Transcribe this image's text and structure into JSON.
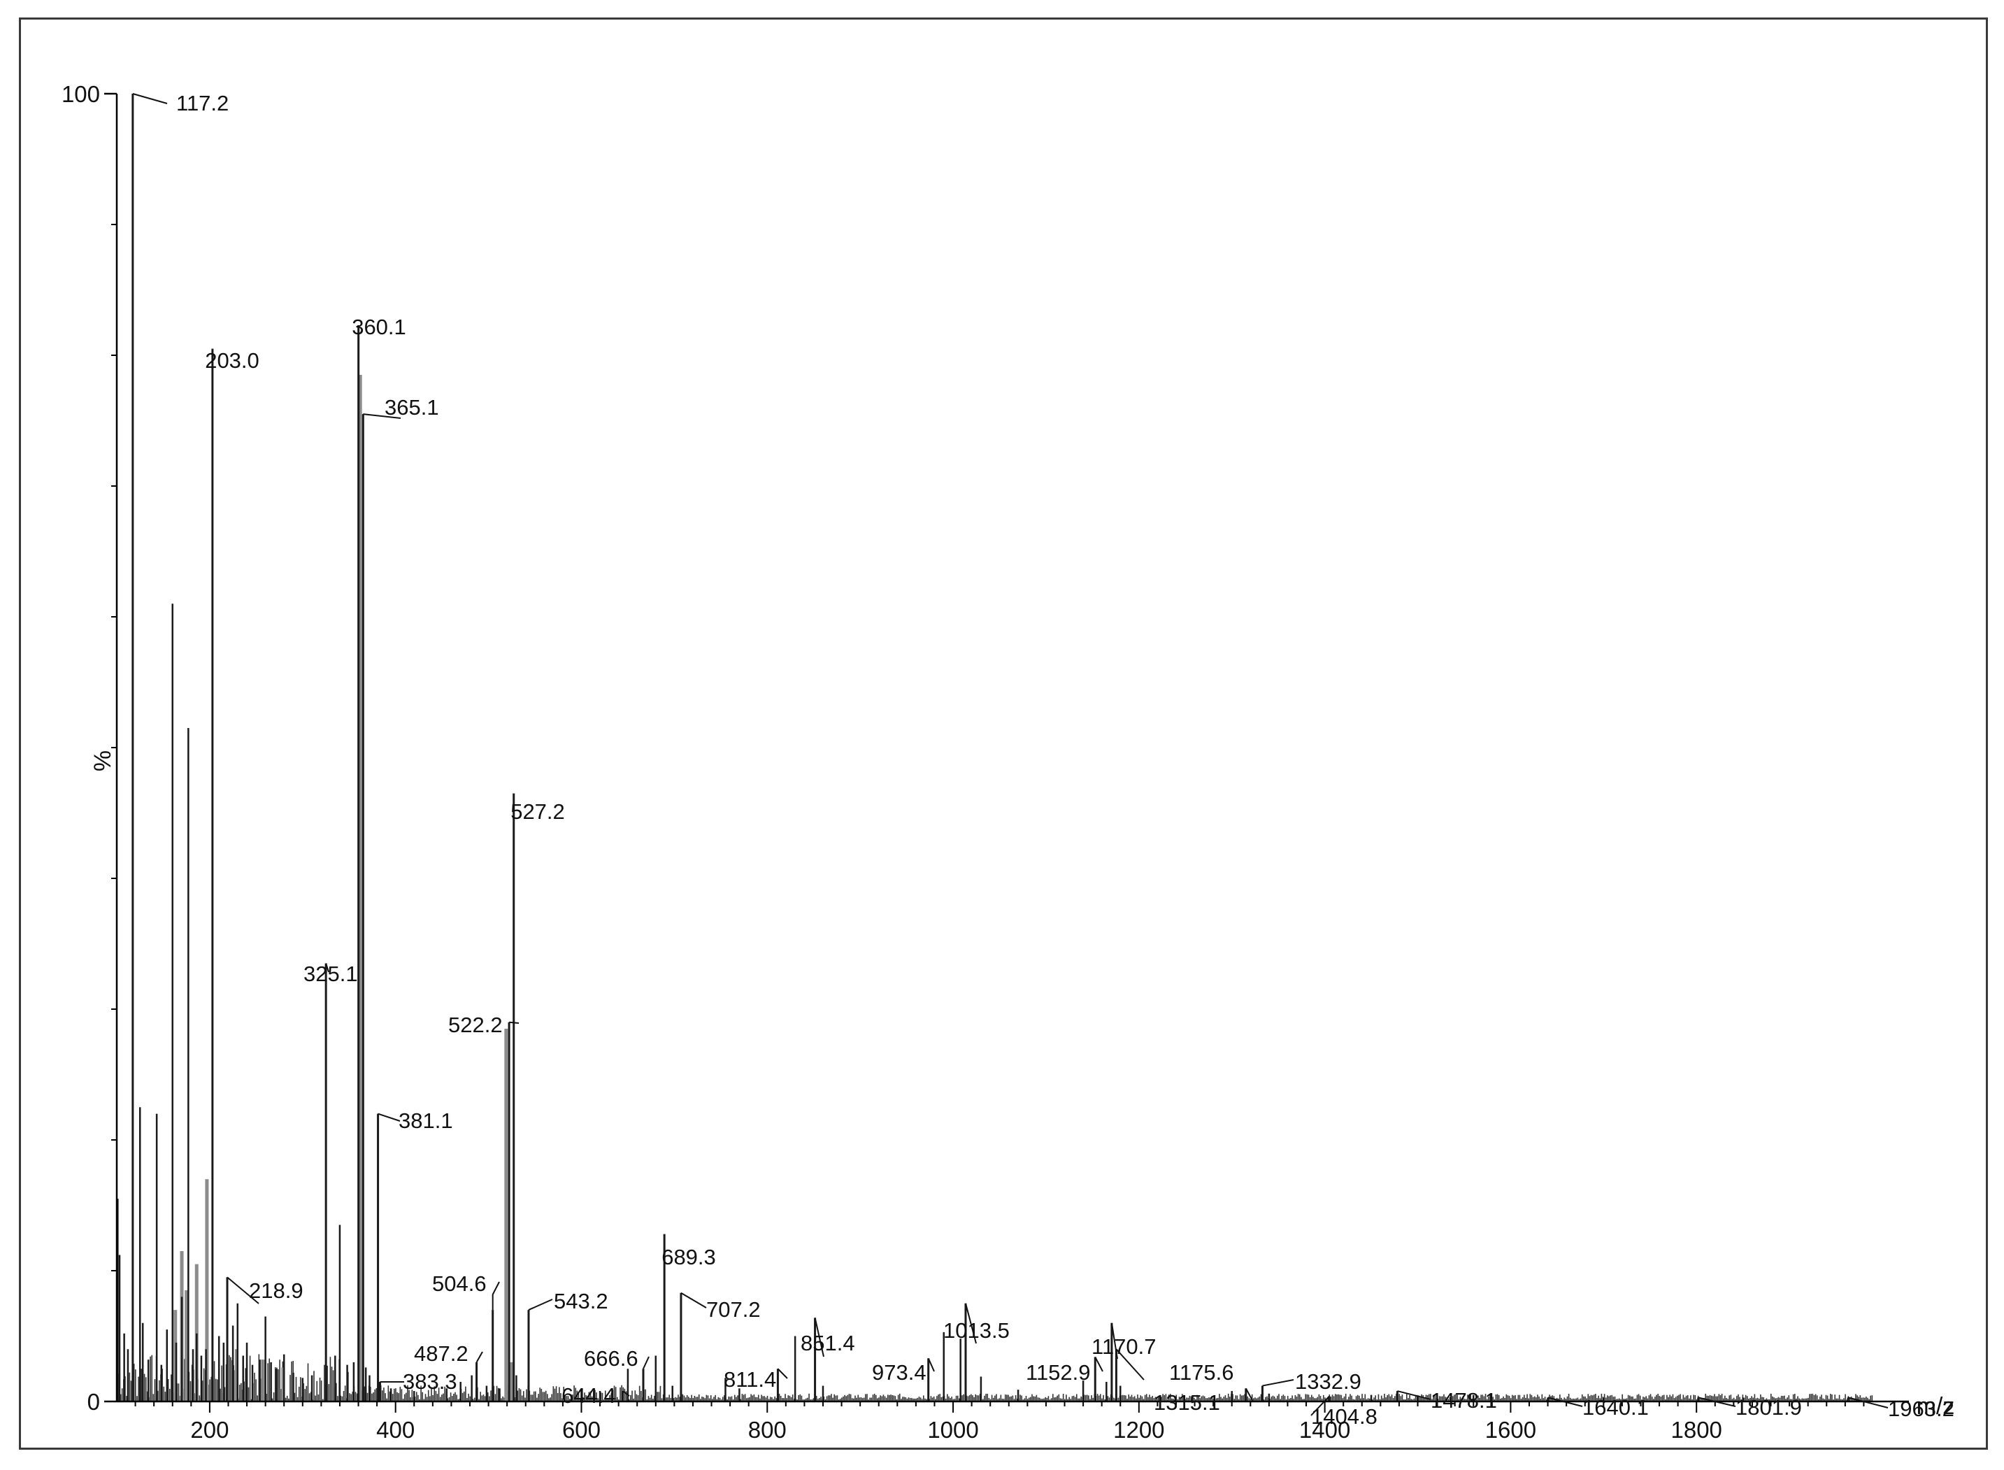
{
  "chart_data": {
    "type": "bar",
    "subtype": "mass-spectrum",
    "title": "",
    "xlabel": "m/z",
    "ylabel": "%",
    "xlim": [
      100,
      2000
    ],
    "ylim": [
      0,
      100
    ],
    "x_ticks": [
      200,
      400,
      600,
      800,
      1000,
      1200,
      1400,
      1600,
      1800
    ],
    "y_ticks": [
      0,
      100
    ],
    "grid": false,
    "colors": {
      "peak": "#1a1a1a",
      "peak_gray": "#8c8c8c",
      "axis": "#000000"
    },
    "labeled_peaks": [
      {
        "label": "117.2",
        "mz": 117.2,
        "intensity": 100
      },
      {
        "label": "203.0",
        "mz": 203.0,
        "intensity": 80.5
      },
      {
        "label": "218.9",
        "mz": 218.9,
        "intensity": 9.5
      },
      {
        "label": "325.1",
        "mz": 325.1,
        "intensity": 33.5
      },
      {
        "label": "360.1",
        "mz": 360.1,
        "intensity": 82.3
      },
      {
        "label": "365.1",
        "mz": 365.1,
        "intensity": 75.5
      },
      {
        "label": "381.1",
        "mz": 381.1,
        "intensity": 22.0
      },
      {
        "label": "383.3",
        "mz": 383.3,
        "intensity": 1.5
      },
      {
        "label": "487.2",
        "mz": 487.2,
        "intensity": 3.0
      },
      {
        "label": "504.6",
        "mz": 504.6,
        "intensity": 7.0
      },
      {
        "label": "522.2",
        "mz": 522.2,
        "intensity": 29.0
      },
      {
        "label": "527.2",
        "mz": 527.2,
        "intensity": 46.5
      },
      {
        "label": "543.2",
        "mz": 543.2,
        "intensity": 7.0
      },
      {
        "label": "644.4",
        "mz": 644.4,
        "intensity": 0.8
      },
      {
        "label": "666.6",
        "mz": 666.6,
        "intensity": 2.5
      },
      {
        "label": "689.3",
        "mz": 689.3,
        "intensity": 12.8
      },
      {
        "label": "707.2",
        "mz": 707.2,
        "intensity": 8.3
      },
      {
        "label": "811.4",
        "mz": 811.4,
        "intensity": 2.5
      },
      {
        "label": "851.4",
        "mz": 851.4,
        "intensity": 6.4
      },
      {
        "label": "973.4",
        "mz": 973.4,
        "intensity": 3.3
      },
      {
        "label": "1013.5",
        "mz": 1013.5,
        "intensity": 7.5
      },
      {
        "label": "1152.9",
        "mz": 1152.9,
        "intensity": 3.4
      },
      {
        "label": "1170.7",
        "mz": 1170.7,
        "intensity": 6.0
      },
      {
        "label": "1175.6",
        "mz": 1175.6,
        "intensity": 4.0
      },
      {
        "label": "1315.1",
        "mz": 1315.1,
        "intensity": 1.0
      },
      {
        "label": "1332.9",
        "mz": 1332.9,
        "intensity": 1.2
      },
      {
        "label": "1404.8",
        "mz": 1404.8,
        "intensity": 0.4
      },
      {
        "label": "1478.1",
        "mz": 1478.1,
        "intensity": 0.8
      },
      {
        "label": "1640.1",
        "mz": 1640.1,
        "intensity": 0.3
      },
      {
        "label": "1801.9",
        "mz": 1801.9,
        "intensity": 0.3
      },
      {
        "label": "1963.2",
        "mz": 1963.2,
        "intensity": 0.3
      }
    ],
    "other_peaks": [
      [
        101,
        15.5
      ],
      [
        103,
        11.2
      ],
      [
        108,
        5.2
      ],
      [
        112,
        4.0
      ],
      [
        125,
        22.5
      ],
      [
        128,
        6.0
      ],
      [
        134,
        3.2
      ],
      [
        143,
        22.0
      ],
      [
        148,
        2.8
      ],
      [
        154,
        5.5
      ],
      [
        160,
        61.0
      ],
      [
        164,
        4.5
      ],
      [
        170,
        8.0
      ],
      [
        177,
        51.5
      ],
      [
        182,
        4.0
      ],
      [
        186,
        5.2
      ],
      [
        191,
        3.5
      ],
      [
        196,
        4.0
      ],
      [
        210,
        5.0
      ],
      [
        215,
        4.5
      ],
      [
        225,
        5.8
      ],
      [
        230,
        7.5
      ],
      [
        236,
        3.5
      ],
      [
        240,
        4.5
      ],
      [
        246,
        2.8
      ],
      [
        254,
        3.2
      ],
      [
        260,
        6.5
      ],
      [
        266,
        3.0
      ],
      [
        272,
        2.5
      ],
      [
        280,
        3.6
      ],
      [
        290,
        2.2
      ],
      [
        300,
        1.8
      ],
      [
        310,
        2.0
      ],
      [
        335,
        3.5
      ],
      [
        340,
        13.5
      ],
      [
        348,
        2.8
      ],
      [
        355,
        3.0
      ],
      [
        368,
        2.6
      ],
      [
        372,
        2.0
      ],
      [
        395,
        1.0
      ],
      [
        420,
        0.8
      ],
      [
        455,
        1.0
      ],
      [
        470,
        1.5
      ],
      [
        482,
        2.0
      ],
      [
        498,
        1.2
      ],
      [
        512,
        1.0
      ],
      [
        530,
        2.0
      ],
      [
        600,
        1.0
      ],
      [
        620,
        0.8
      ],
      [
        650,
        2.5
      ],
      [
        680,
        3.5
      ],
      [
        698,
        1.2
      ],
      [
        755,
        1.8
      ],
      [
        770,
        1.0
      ],
      [
        830,
        5.0
      ],
      [
        860,
        1.2
      ],
      [
        990,
        5.3
      ],
      [
        1008,
        4.8
      ],
      [
        1030,
        1.9
      ],
      [
        1070,
        0.9
      ],
      [
        1140,
        1.6
      ],
      [
        1165,
        1.5
      ],
      [
        1180,
        1.2
      ],
      [
        1300,
        0.8
      ],
      [
        1340,
        0.6
      ],
      [
        1450,
        0.5
      ],
      [
        1500,
        0.4
      ],
      [
        1560,
        0.5
      ],
      [
        1700,
        0.3
      ],
      [
        1850,
        0.3
      ]
    ],
    "gray_peaks": [
      [
        163,
        7.0
      ],
      [
        170,
        11.5
      ],
      [
        175,
        8.5
      ],
      [
        186,
        10.5
      ],
      [
        197,
        17.0
      ],
      [
        229,
        4.0
      ],
      [
        258,
        3.2
      ],
      [
        279,
        2.6
      ],
      [
        362,
        78.5
      ],
      [
        519,
        28.5
      ],
      [
        525,
        3.0
      ]
    ]
  }
}
